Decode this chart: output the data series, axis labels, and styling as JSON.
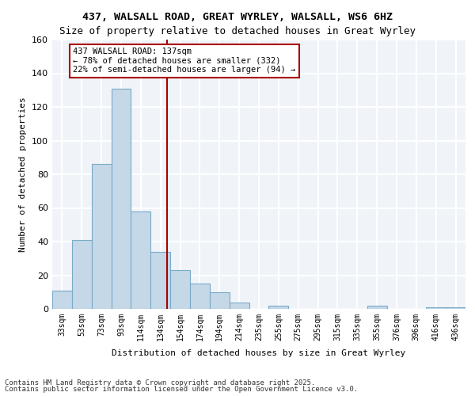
{
  "title1": "437, WALSALL ROAD, GREAT WYRLEY, WALSALL, WS6 6HZ",
  "title2": "Size of property relative to detached houses in Great Wyrley",
  "xlabel": "Distribution of detached houses by size in Great Wyrley",
  "ylabel": "Number of detached properties",
  "categories": [
    "33sqm",
    "53sqm",
    "73sqm",
    "93sqm",
    "114sqm",
    "134sqm",
    "154sqm",
    "174sqm",
    "194sqm",
    "214sqm",
    "235sqm",
    "255sqm",
    "275sqm",
    "295sqm",
    "315sqm",
    "335sqm",
    "355sqm",
    "376sqm",
    "396sqm",
    "416sqm",
    "436sqm"
  ],
  "values": [
    11,
    41,
    86,
    131,
    58,
    34,
    23,
    15,
    10,
    4,
    0,
    2,
    0,
    0,
    0,
    0,
    2,
    0,
    0,
    1,
    1
  ],
  "bar_color": "#c5d8e8",
  "bar_edge_color": "#7aaac8",
  "vline_x": 5.35,
  "vline_color": "#aa0000",
  "annotation_text": "437 WALSALL ROAD: 137sqm\n← 78% of detached houses are smaller (332)\n22% of semi-detached houses are larger (94) →",
  "annotation_box_color": "#aa0000",
  "ylim": [
    0,
    160
  ],
  "yticks": [
    0,
    20,
    40,
    60,
    80,
    100,
    120,
    140,
    160
  ],
  "background_color": "#f0f4f8",
  "grid_color": "#ffffff",
  "footer1": "Contains HM Land Registry data © Crown copyright and database right 2025.",
  "footer2": "Contains public sector information licensed under the Open Government Licence v3.0."
}
